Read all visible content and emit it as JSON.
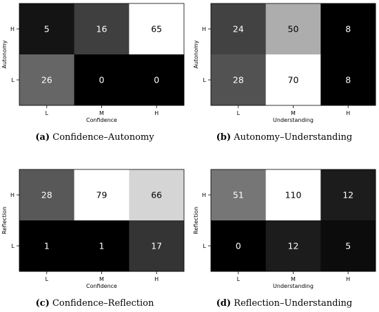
{
  "chart_data": [
    {
      "type": "heatmap",
      "colormap": "gray",
      "xlabel": "Confidence",
      "ylabel": "Autonomy",
      "x_categories": [
        "L",
        "M",
        "H"
      ],
      "y_categories": [
        "H",
        "L"
      ],
      "values": [
        [
          5,
          16,
          65
        ],
        [
          26,
          0,
          0
        ]
      ],
      "caption": {
        "letter": "(a)",
        "text": " Confidence–Autonomy"
      }
    },
    {
      "type": "heatmap",
      "colormap": "gray",
      "xlabel": "Understanding",
      "ylabel": "Autonomy",
      "x_categories": [
        "L",
        "M",
        "H"
      ],
      "y_categories": [
        "H",
        "L"
      ],
      "values": [
        [
          24,
          50,
          8
        ],
        [
          28,
          70,
          8
        ]
      ],
      "caption": {
        "letter": "(b)",
        "text": " Autonomy–Understanding"
      }
    },
    {
      "type": "heatmap",
      "colormap": "gray",
      "xlabel": "Confidence",
      "ylabel": "Reflection",
      "x_categories": [
        "L",
        "M",
        "H"
      ],
      "y_categories": [
        "H",
        "L"
      ],
      "values": [
        [
          28,
          79,
          66
        ],
        [
          1,
          1,
          17
        ]
      ],
      "caption": {
        "letter": "(c)",
        "text": " Confidence–Reflection"
      }
    },
    {
      "type": "heatmap",
      "colormap": "gray",
      "xlabel": "Understanding",
      "ylabel": "Reflection",
      "x_categories": [
        "L",
        "M",
        "H"
      ],
      "y_categories": [
        "H",
        "L"
      ],
      "values": [
        [
          51,
          110,
          12
        ],
        [
          0,
          12,
          5
        ]
      ],
      "caption": {
        "letter": "(d)",
        "text": " Reflection–Understanding"
      }
    }
  ]
}
